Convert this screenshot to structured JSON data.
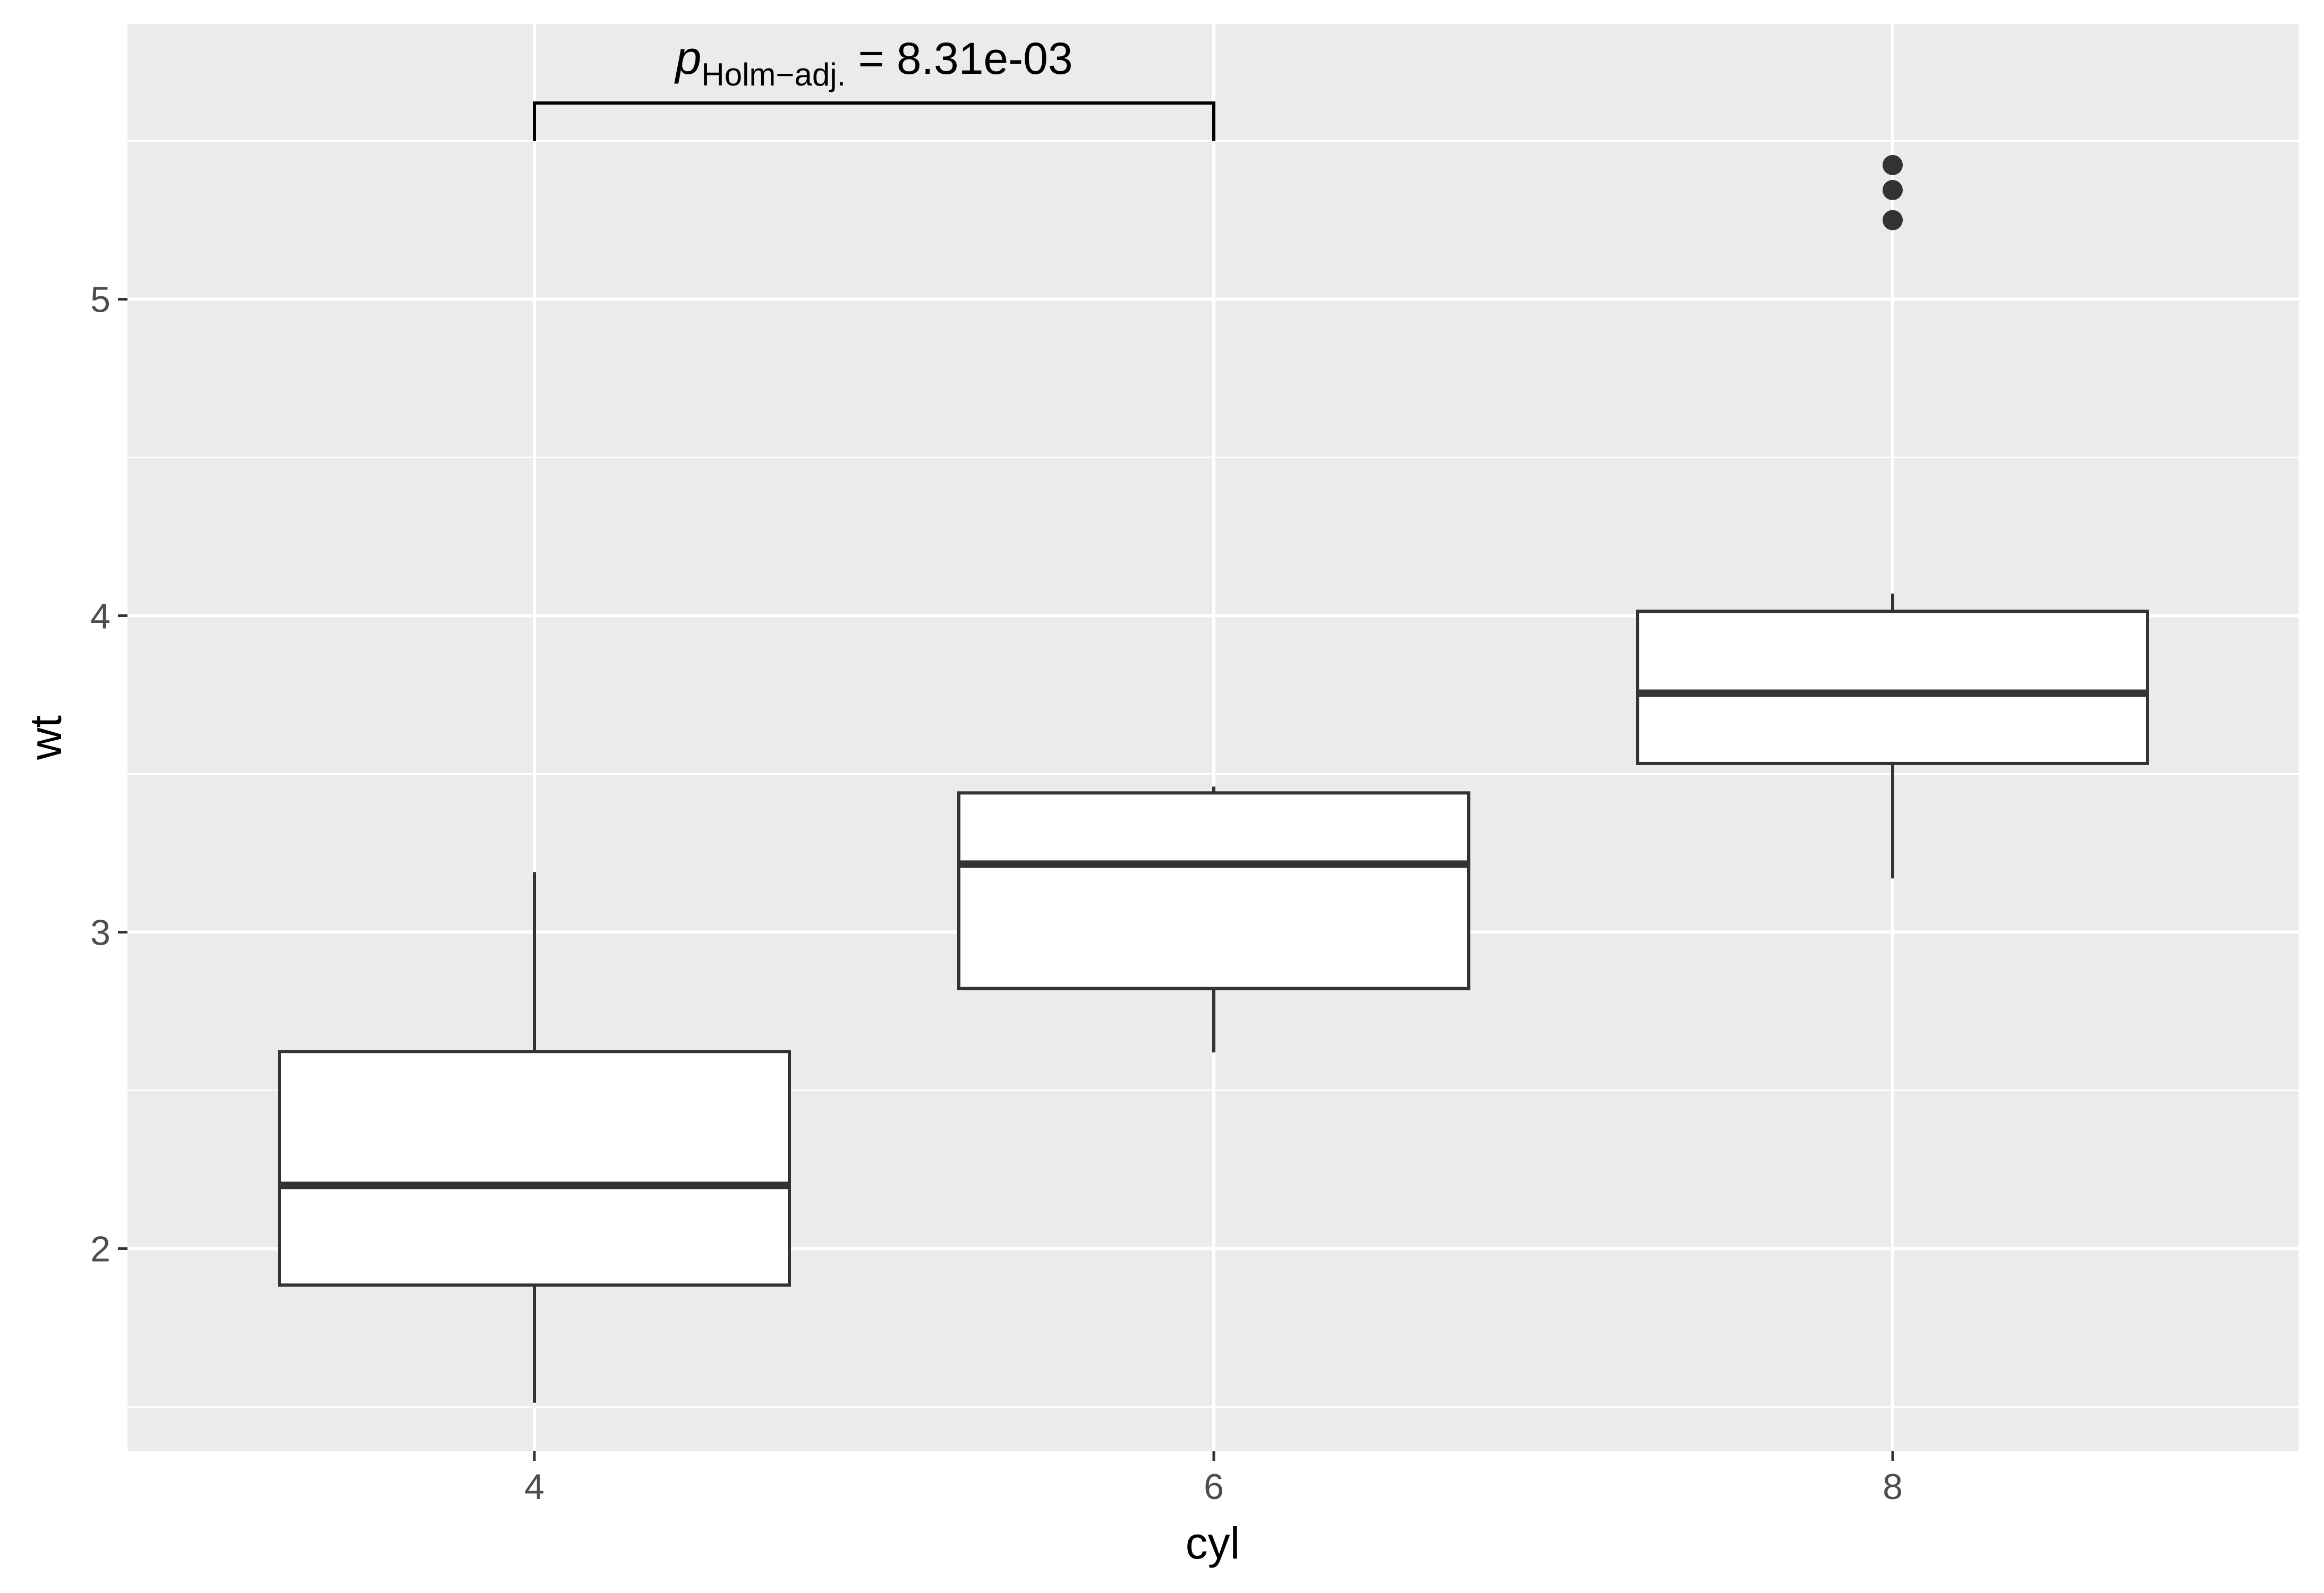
{
  "chart_data": {
    "type": "boxplot",
    "title": "",
    "xlabel": "cyl",
    "ylabel": "wt",
    "categories": [
      "4",
      "6",
      "8"
    ],
    "x_ticks": [
      "4",
      "6",
      "8"
    ],
    "y_ticks": [
      "2",
      "3",
      "4",
      "5"
    ],
    "ylim": [
      1.36,
      5.87
    ],
    "grid": true,
    "panel_background": "#ebebeb",
    "grid_color": "#ffffff",
    "box_fill": "#ffffff",
    "box_line_color": "#333333",
    "boxes": [
      {
        "category": "4",
        "whisker_low": 1.513,
        "q1": 1.885,
        "median": 2.2,
        "q3": 2.623,
        "whisker_high": 3.19,
        "outliers": []
      },
      {
        "category": "6",
        "whisker_low": 2.62,
        "q1": 2.822,
        "median": 3.215,
        "q3": 3.44,
        "whisker_high": 3.46,
        "outliers": []
      },
      {
        "category": "8",
        "whisker_low": 3.17,
        "q1": 3.533,
        "median": 3.755,
        "q3": 4.014,
        "whisker_high": 4.07,
        "outliers": [
          5.25,
          5.345,
          5.424
        ]
      }
    ],
    "annotations": [
      {
        "type": "bracket",
        "from": "4",
        "to": "6",
        "y_top": 5.62,
        "y_bottom": 5.5,
        "label_main": "p",
        "label_sub": "Holm−adj.",
        "label_rest": " = 8.31e-03"
      }
    ]
  }
}
